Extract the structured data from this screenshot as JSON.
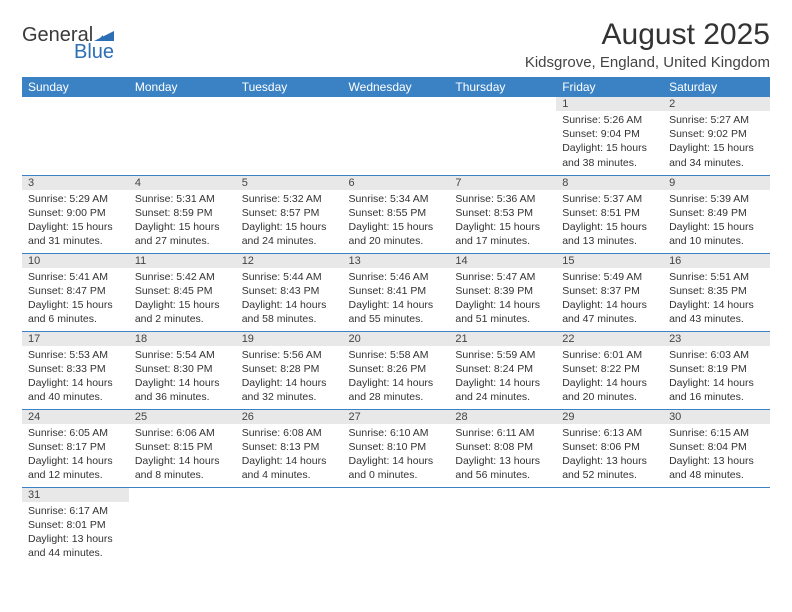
{
  "logo": {
    "part1": "General",
    "part2": "Blue"
  },
  "title": {
    "month": "August 2025",
    "location": "Kidsgrove, England, United Kingdom"
  },
  "colors": {
    "header_bg": "#3a82c4",
    "daynum_bg": "#e8e8e8",
    "border": "#3a82c4",
    "logo_blue": "#2d6fb5"
  },
  "dayNames": [
    "Sunday",
    "Monday",
    "Tuesday",
    "Wednesday",
    "Thursday",
    "Friday",
    "Saturday"
  ],
  "weeks": [
    [
      {
        "empty": true
      },
      {
        "empty": true
      },
      {
        "empty": true
      },
      {
        "empty": true
      },
      {
        "empty": true
      },
      {
        "num": "1",
        "sunrise": "Sunrise: 5:26 AM",
        "sunset": "Sunset: 9:04 PM",
        "daylight": "Daylight: 15 hours and 38 minutes."
      },
      {
        "num": "2",
        "sunrise": "Sunrise: 5:27 AM",
        "sunset": "Sunset: 9:02 PM",
        "daylight": "Daylight: 15 hours and 34 minutes."
      }
    ],
    [
      {
        "num": "3",
        "sunrise": "Sunrise: 5:29 AM",
        "sunset": "Sunset: 9:00 PM",
        "daylight": "Daylight: 15 hours and 31 minutes."
      },
      {
        "num": "4",
        "sunrise": "Sunrise: 5:31 AM",
        "sunset": "Sunset: 8:59 PM",
        "daylight": "Daylight: 15 hours and 27 minutes."
      },
      {
        "num": "5",
        "sunrise": "Sunrise: 5:32 AM",
        "sunset": "Sunset: 8:57 PM",
        "daylight": "Daylight: 15 hours and 24 minutes."
      },
      {
        "num": "6",
        "sunrise": "Sunrise: 5:34 AM",
        "sunset": "Sunset: 8:55 PM",
        "daylight": "Daylight: 15 hours and 20 minutes."
      },
      {
        "num": "7",
        "sunrise": "Sunrise: 5:36 AM",
        "sunset": "Sunset: 8:53 PM",
        "daylight": "Daylight: 15 hours and 17 minutes."
      },
      {
        "num": "8",
        "sunrise": "Sunrise: 5:37 AM",
        "sunset": "Sunset: 8:51 PM",
        "daylight": "Daylight: 15 hours and 13 minutes."
      },
      {
        "num": "9",
        "sunrise": "Sunrise: 5:39 AM",
        "sunset": "Sunset: 8:49 PM",
        "daylight": "Daylight: 15 hours and 10 minutes."
      }
    ],
    [
      {
        "num": "10",
        "sunrise": "Sunrise: 5:41 AM",
        "sunset": "Sunset: 8:47 PM",
        "daylight": "Daylight: 15 hours and 6 minutes."
      },
      {
        "num": "11",
        "sunrise": "Sunrise: 5:42 AM",
        "sunset": "Sunset: 8:45 PM",
        "daylight": "Daylight: 15 hours and 2 minutes."
      },
      {
        "num": "12",
        "sunrise": "Sunrise: 5:44 AM",
        "sunset": "Sunset: 8:43 PM",
        "daylight": "Daylight: 14 hours and 58 minutes."
      },
      {
        "num": "13",
        "sunrise": "Sunrise: 5:46 AM",
        "sunset": "Sunset: 8:41 PM",
        "daylight": "Daylight: 14 hours and 55 minutes."
      },
      {
        "num": "14",
        "sunrise": "Sunrise: 5:47 AM",
        "sunset": "Sunset: 8:39 PM",
        "daylight": "Daylight: 14 hours and 51 minutes."
      },
      {
        "num": "15",
        "sunrise": "Sunrise: 5:49 AM",
        "sunset": "Sunset: 8:37 PM",
        "daylight": "Daylight: 14 hours and 47 minutes."
      },
      {
        "num": "16",
        "sunrise": "Sunrise: 5:51 AM",
        "sunset": "Sunset: 8:35 PM",
        "daylight": "Daylight: 14 hours and 43 minutes."
      }
    ],
    [
      {
        "num": "17",
        "sunrise": "Sunrise: 5:53 AM",
        "sunset": "Sunset: 8:33 PM",
        "daylight": "Daylight: 14 hours and 40 minutes."
      },
      {
        "num": "18",
        "sunrise": "Sunrise: 5:54 AM",
        "sunset": "Sunset: 8:30 PM",
        "daylight": "Daylight: 14 hours and 36 minutes."
      },
      {
        "num": "19",
        "sunrise": "Sunrise: 5:56 AM",
        "sunset": "Sunset: 8:28 PM",
        "daylight": "Daylight: 14 hours and 32 minutes."
      },
      {
        "num": "20",
        "sunrise": "Sunrise: 5:58 AM",
        "sunset": "Sunset: 8:26 PM",
        "daylight": "Daylight: 14 hours and 28 minutes."
      },
      {
        "num": "21",
        "sunrise": "Sunrise: 5:59 AM",
        "sunset": "Sunset: 8:24 PM",
        "daylight": "Daylight: 14 hours and 24 minutes."
      },
      {
        "num": "22",
        "sunrise": "Sunrise: 6:01 AM",
        "sunset": "Sunset: 8:22 PM",
        "daylight": "Daylight: 14 hours and 20 minutes."
      },
      {
        "num": "23",
        "sunrise": "Sunrise: 6:03 AM",
        "sunset": "Sunset: 8:19 PM",
        "daylight": "Daylight: 14 hours and 16 minutes."
      }
    ],
    [
      {
        "num": "24",
        "sunrise": "Sunrise: 6:05 AM",
        "sunset": "Sunset: 8:17 PM",
        "daylight": "Daylight: 14 hours and 12 minutes."
      },
      {
        "num": "25",
        "sunrise": "Sunrise: 6:06 AM",
        "sunset": "Sunset: 8:15 PM",
        "daylight": "Daylight: 14 hours and 8 minutes."
      },
      {
        "num": "26",
        "sunrise": "Sunrise: 6:08 AM",
        "sunset": "Sunset: 8:13 PM",
        "daylight": "Daylight: 14 hours and 4 minutes."
      },
      {
        "num": "27",
        "sunrise": "Sunrise: 6:10 AM",
        "sunset": "Sunset: 8:10 PM",
        "daylight": "Daylight: 14 hours and 0 minutes."
      },
      {
        "num": "28",
        "sunrise": "Sunrise: 6:11 AM",
        "sunset": "Sunset: 8:08 PM",
        "daylight": "Daylight: 13 hours and 56 minutes."
      },
      {
        "num": "29",
        "sunrise": "Sunrise: 6:13 AM",
        "sunset": "Sunset: 8:06 PM",
        "daylight": "Daylight: 13 hours and 52 minutes."
      },
      {
        "num": "30",
        "sunrise": "Sunrise: 6:15 AM",
        "sunset": "Sunset: 8:04 PM",
        "daylight": "Daylight: 13 hours and 48 minutes."
      }
    ],
    [
      {
        "num": "31",
        "sunrise": "Sunrise: 6:17 AM",
        "sunset": "Sunset: 8:01 PM",
        "daylight": "Daylight: 13 hours and 44 minutes."
      },
      {
        "empty": true
      },
      {
        "empty": true
      },
      {
        "empty": true
      },
      {
        "empty": true
      },
      {
        "empty": true
      },
      {
        "empty": true
      }
    ]
  ]
}
